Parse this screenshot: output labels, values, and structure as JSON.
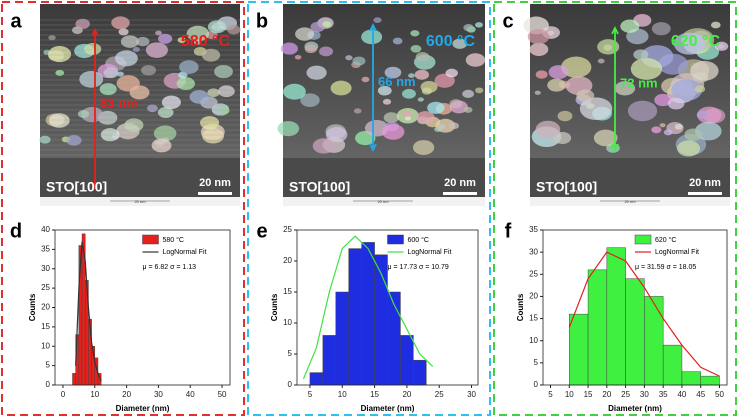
{
  "panels": [
    {
      "label": "a",
      "temperature": "580 °C",
      "thickness": "83 nm",
      "substrate": "STO[100]",
      "scale_bar": "20 nm",
      "scale_caption": "20 nm",
      "color": "#e8201b",
      "frame_color": "#e03030"
    },
    {
      "label": "b",
      "temperature": "600 °C",
      "thickness": "66 nm",
      "substrate": "STO[100]",
      "scale_bar": "20 nm",
      "scale_caption": "20 nm",
      "color": "#22a8e8",
      "frame_color": "#30c0f0"
    },
    {
      "label": "c",
      "temperature": "620 °C",
      "thickness": "72 nm",
      "substrate": "STO[100]",
      "scale_bar": "20 nm",
      "scale_caption": "20 nm",
      "color": "#44ee44",
      "frame_color": "#40d040"
    }
  ],
  "chart_data": [
    {
      "type": "histogram",
      "panel_label": "d",
      "x_label": "Diameter (nm)",
      "y_label": "Counts",
      "annotation": "μ = 6.82  σ = 1.13",
      "bins": [
        3,
        4,
        5,
        6,
        7,
        8,
        9,
        10,
        11,
        12
      ],
      "xlim": [
        -2.5,
        52.5
      ],
      "xticks": [
        0,
        10,
        20,
        30,
        40,
        50
      ],
      "ylim": [
        0,
        40
      ],
      "yticks": [
        0,
        5,
        10,
        15,
        20,
        25,
        30,
        35,
        40
      ],
      "series": [
        {
          "name": "580 °C",
          "color": "#e8201b",
          "values": [
            3,
            13,
            36,
            39,
            27,
            17,
            10,
            7,
            3
          ]
        },
        {
          "name": "LogNormal Fit",
          "color": "#333333",
          "x": [
            4,
            5,
            6,
            7,
            8,
            9,
            10,
            11,
            12
          ],
          "values": [
            5,
            25,
            37,
            32,
            20,
            11,
            6,
            3,
            1
          ]
        }
      ]
    },
    {
      "type": "histogram",
      "panel_label": "e",
      "x_label": "Diameter (nm)",
      "y_label": "Counts",
      "annotation": "μ = 17.73  σ = 10.79",
      "bins": [
        5,
        7,
        9,
        11,
        13,
        15,
        17,
        19,
        21,
        23
      ],
      "xlim": [
        3,
        31
      ],
      "xticks": [
        5,
        10,
        15,
        20,
        25,
        30
      ],
      "ylim": [
        0,
        25
      ],
      "yticks": [
        0,
        5,
        10,
        15,
        20,
        25
      ],
      "series": [
        {
          "name": "600 °C",
          "color": "#1f2de0",
          "values": [
            2,
            8,
            15,
            22,
            23,
            21,
            15,
            8,
            4
          ]
        },
        {
          "name": "LogNormal Fit",
          "color": "#40e040",
          "x": [
            4,
            6,
            8,
            10,
            12,
            14,
            16,
            18,
            20,
            22,
            24
          ],
          "values": [
            1,
            6,
            15,
            22,
            24,
            22,
            18,
            13,
            9,
            5,
            3
          ]
        }
      ]
    },
    {
      "type": "histogram",
      "panel_label": "f",
      "x_label": "Diameter (nm)",
      "y_label": "Counts",
      "annotation": "μ = 31.59  σ = 18.05",
      "bins": [
        10,
        15,
        20,
        25,
        30,
        35,
        40,
        45,
        50
      ],
      "xlim": [
        3,
        52
      ],
      "xticks": [
        5,
        10,
        15,
        20,
        25,
        30,
        35,
        40,
        45,
        50
      ],
      "ylim": [
        0,
        35
      ],
      "yticks": [
        0,
        5,
        10,
        15,
        20,
        25,
        30,
        35
      ],
      "series": [
        {
          "name": "620 °C",
          "color": "#40f040",
          "values": [
            16,
            26,
            31,
            24,
            20,
            9,
            3,
            2
          ]
        },
        {
          "name": "LogNormal Fit",
          "color": "#e02020",
          "x": [
            10,
            15,
            20,
            25,
            30,
            35,
            40,
            45,
            50
          ],
          "values": [
            13,
            24,
            30,
            28,
            22,
            15,
            9,
            4,
            2
          ]
        }
      ]
    }
  ]
}
